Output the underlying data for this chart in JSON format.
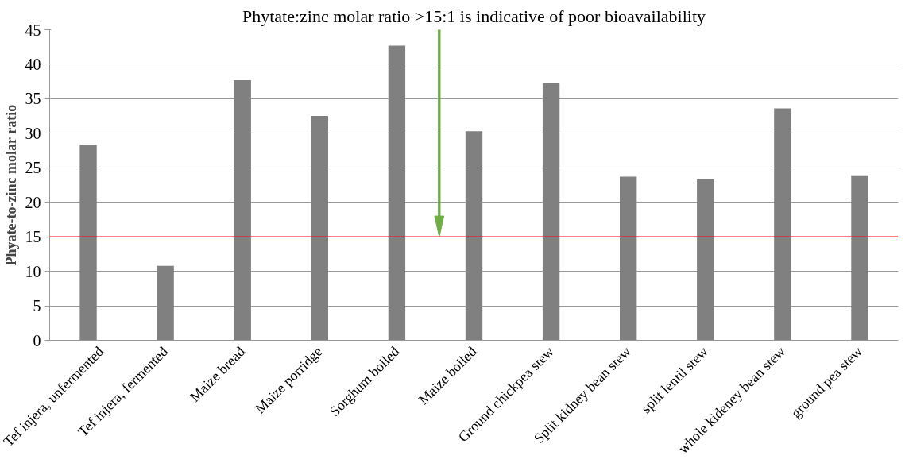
{
  "chart_data": {
    "type": "bar",
    "title": "Phytate:zinc molar ratio >15:1 is indicative of poor bioavailability",
    "ylabel": "Phyate-to-zinc molar ratio",
    "categories": [
      "Tef injera, unfermented",
      "Tef injera, fermented",
      "Maize bread",
      "Maize porridge",
      "Sorghum boiled",
      "Maize boiled",
      "Ground chickpea stew",
      "Split kidney bean stew",
      "split lentil stew",
      "whole kideney bean stew",
      "ground pea stew"
    ],
    "values": [
      28.3,
      10.8,
      37.7,
      32.5,
      42.7,
      30.3,
      37.3,
      23.7,
      23.3,
      33.6,
      23.9
    ],
    "color": "#808080",
    "ylim": [
      0,
      45
    ],
    "yticks": [
      0,
      5,
      10,
      15,
      20,
      25,
      30,
      35,
      40,
      45
    ],
    "grid": "y",
    "ref_lines": [
      {
        "axis": "y",
        "value": 15,
        "color": "#ff0000"
      }
    ]
  }
}
